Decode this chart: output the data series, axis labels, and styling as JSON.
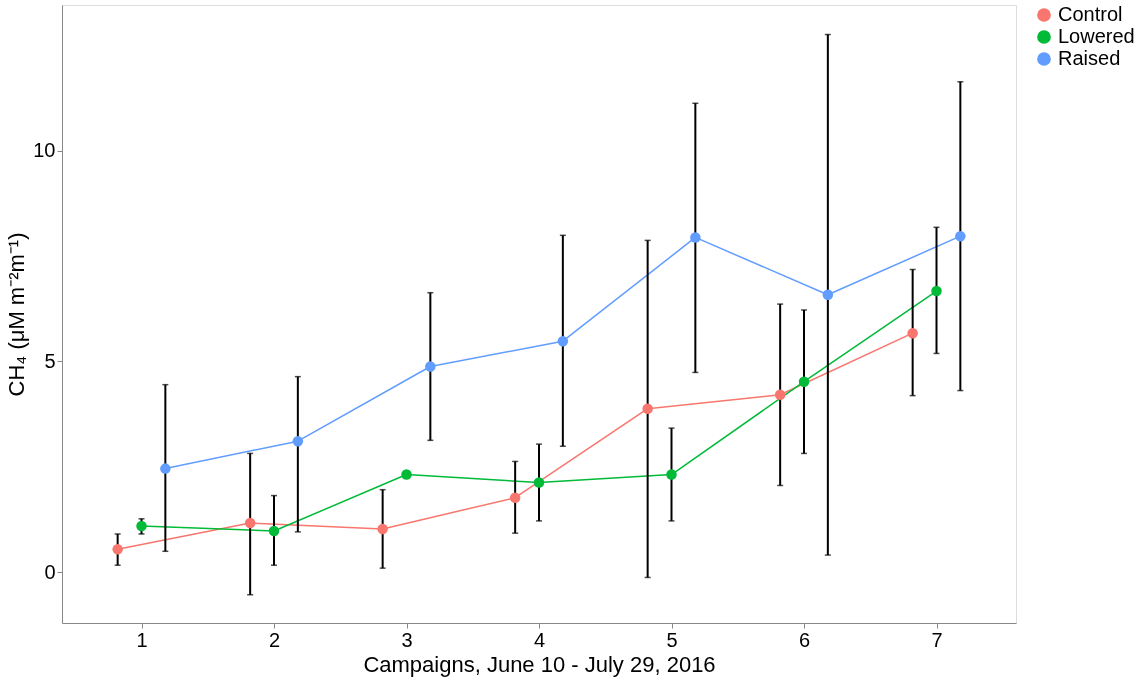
{
  "chart_data": {
    "type": "line",
    "xlabel": "Campaigns, June 10 - July 29, 2016",
    "ylabel": "CH₄ (μM m⁻²m⁻¹)",
    "xlim": [
      0.4,
      7.6
    ],
    "xticks": [
      1,
      2,
      3,
      4,
      5,
      6,
      7
    ],
    "ylim": [
      -1.2,
      13.45
    ],
    "yticks": [
      0,
      5,
      10
    ],
    "grid": false,
    "legend": "right",
    "marker": "circle",
    "line_style": "solid",
    "series": [
      {
        "name": "Control",
        "color": "#f8766d",
        "x": [
          0.82,
          1.82,
          2.82,
          3.82,
          4.82,
          5.82,
          6.82
        ],
        "values": [
          0.55,
          1.17,
          1.03,
          1.77,
          3.88,
          4.21,
          5.67
        ],
        "errors": [
          [
            0.17,
            0.91
          ],
          [
            -0.53,
            2.82
          ],
          [
            0.1,
            1.96
          ],
          [
            0.93,
            2.63
          ],
          [
            -0.12,
            7.87
          ],
          [
            2.06,
            6.36
          ],
          [
            4.19,
            7.18
          ]
        ]
      },
      {
        "name": "Lowered",
        "color": "#00ba38",
        "x": [
          1,
          2,
          3,
          4,
          5,
          6,
          7
        ],
        "values": [
          1.1,
          0.98,
          2.32,
          2.13,
          2.32,
          4.52,
          6.67
        ],
        "errors": [
          [
            0.91,
            1.27
          ],
          [
            0.17,
            1.82
          ],
          null,
          [
            1.22,
            3.04
          ],
          [
            1.22,
            3.42
          ],
          [
            2.82,
            6.22
          ],
          [
            5.19,
            8.18
          ]
        ]
      },
      {
        "name": "Raised",
        "color": "#619cff",
        "x": [
          1.18,
          2.18,
          3.18,
          4.18,
          5.18,
          6.18,
          7.18
        ],
        "values": [
          2.46,
          3.11,
          4.88,
          5.48,
          7.94,
          6.58,
          7.97
        ],
        "errors": [
          [
            0.5,
            4.45
          ],
          [
            0.96,
            4.64
          ],
          [
            3.13,
            6.63
          ],
          [
            2.99,
            7.99
          ],
          [
            4.74,
            11.12
          ],
          [
            0.41,
            12.75
          ],
          [
            4.31,
            11.63
          ]
        ]
      }
    ]
  }
}
